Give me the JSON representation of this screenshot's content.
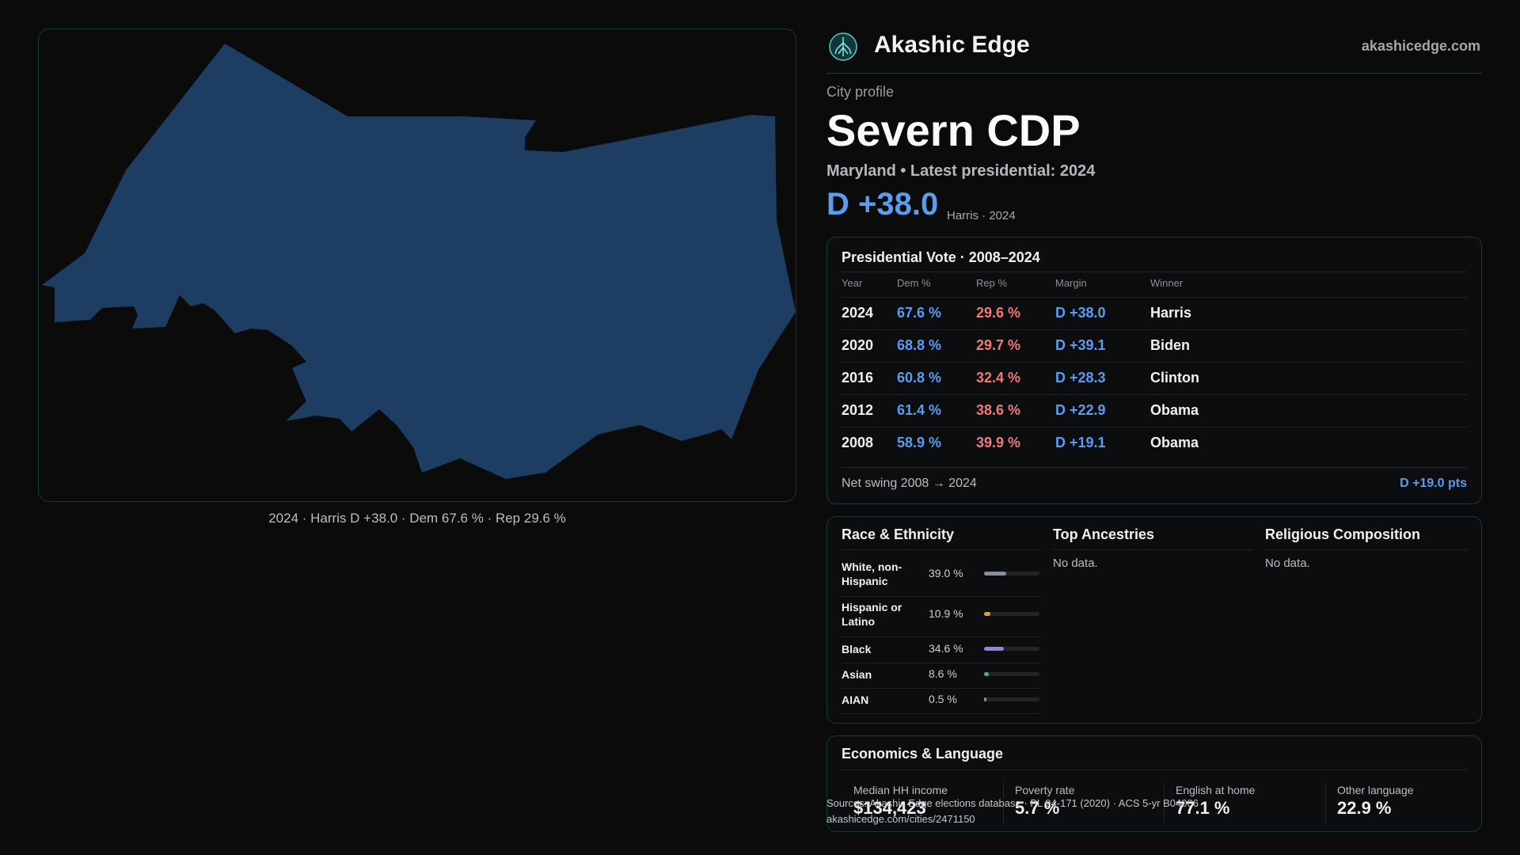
{
  "map": {
    "fill_color": "#1e3d63",
    "caption": "2024 · Harris D +38.0 · Dem 67.6 % · Rep 29.6 %"
  },
  "brand": {
    "name": "Akashic Edge",
    "url": "akashicedge.com",
    "logo_icon": "tree-emblem-icon"
  },
  "profile": {
    "kicker": "City profile",
    "title": "Severn CDP",
    "subtitle": "Maryland • Latest presidential: 2024",
    "margin": "D +38.0",
    "margin_note": "Harris · 2024"
  },
  "vote_table": {
    "title": "Presidential Vote · 2008–2024",
    "headers": [
      "Year",
      "Dem %",
      "Rep %",
      "Margin",
      "Winner"
    ],
    "rows": [
      {
        "year": "2024",
        "dem": "67.6 %",
        "rep": "29.6 %",
        "margin": "D +38.0",
        "winner": "Harris"
      },
      {
        "year": "2020",
        "dem": "68.8 %",
        "rep": "29.7 %",
        "margin": "D +39.1",
        "winner": "Biden"
      },
      {
        "year": "2016",
        "dem": "60.8 %",
        "rep": "32.4 %",
        "margin": "D +28.3",
        "winner": "Clinton"
      },
      {
        "year": "2012",
        "dem": "61.4 %",
        "rep": "38.6 %",
        "margin": "D +22.9",
        "winner": "Obama"
      },
      {
        "year": "2008",
        "dem": "58.9 %",
        "rep": "39.9 %",
        "margin": "D +19.1",
        "winner": "Obama"
      }
    ],
    "swing_label": "Net swing 2008 → 2024",
    "swing_value": "D +19.0 pts"
  },
  "race": {
    "title": "Race & Ethnicity",
    "rows": [
      {
        "name": "White, non-Hispanic",
        "value": "39.0 %",
        "share": 0.39,
        "color": "#8a8f9c"
      },
      {
        "name": "Hispanic or Latino",
        "value": "10.9 %",
        "share": 0.109,
        "color": "#e0a030"
      },
      {
        "name": "Black",
        "value": "34.6 %",
        "share": 0.346,
        "color": "#9b7fe0"
      },
      {
        "name": "Asian",
        "value": "8.6 %",
        "share": 0.086,
        "color": "#39c07a"
      },
      {
        "name": "AIAN",
        "value": "0.5 %",
        "share": 0.005,
        "color": "#8a8f9c"
      }
    ]
  },
  "ancestries": {
    "title": "Top Ancestries",
    "empty": "No data."
  },
  "religion": {
    "title": "Religious Composition",
    "empty": "No data."
  },
  "economics": {
    "title": "Economics & Language",
    "stats": [
      {
        "label": "Median HH income",
        "value": "$134,423"
      },
      {
        "label": "Poverty rate",
        "value": "5.7 %"
      },
      {
        "label": "English at home",
        "value": "77.1 %"
      },
      {
        "label": "Other language",
        "value": "22.9 %"
      }
    ]
  },
  "footer": {
    "source": "Sources: Akashic Edge elections database · PL 94-171 (2020) · ACS 5-yr B04006",
    "link": "akashicedge.com/cities/2471150"
  }
}
